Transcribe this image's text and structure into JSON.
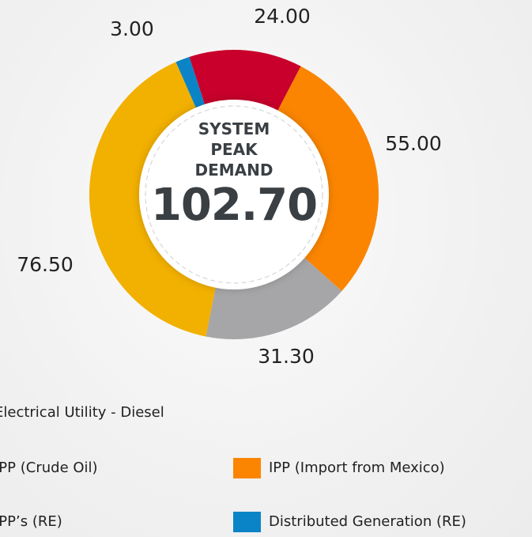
{
  "chart_data": {
    "type": "donut",
    "center_label": "SYSTEM PEAK DEMAND",
    "center_value": {
      "value": 102.7,
      "label": "102.70"
    },
    "categories": [
      "Electrical Utility - Diesel",
      "IPP (Crude Oil)",
      "IPP (Import from Mexico)",
      "IPP’s (RE)",
      "Distributed Generation (RE)"
    ],
    "values": [
      24,
      31.3,
      55,
      76.5,
      3
    ],
    "value_labels": [
      "24.00",
      "31.30",
      "55.00",
      "76.50",
      "3.00"
    ],
    "colors": [
      "#c8002b",
      "#a6a6a8",
      "#fb8500",
      "#f2b000",
      "#0a84c6"
    ]
  }
}
